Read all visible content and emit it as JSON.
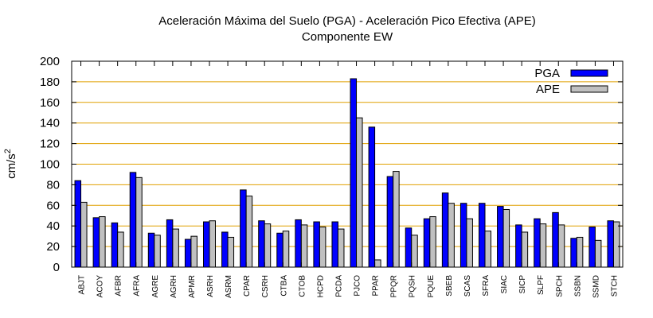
{
  "chart_data": {
    "type": "bar",
    "title": "Aceleración Máxima del Suelo (PGA) -  Aceleración Pico Efectiva (APE)",
    "subtitle": "Componente EW",
    "xlabel": "",
    "ylabel": "cm/s",
    "ylabel_superscript": "2",
    "ylim": [
      0,
      200
    ],
    "yticks": [
      0,
      20,
      40,
      60,
      80,
      100,
      120,
      140,
      160,
      180,
      200
    ],
    "ytick_labels": [
      "0",
      "20",
      "40",
      "60",
      "80",
      "100",
      "120",
      "140",
      "160",
      "180",
      "200"
    ],
    "grid": true,
    "legend": "top-right",
    "categories": [
      "ABJT",
      "ACOY",
      "AFBR",
      "AFRA",
      "AGRE",
      "AGRH",
      "APMR",
      "ASRH",
      "ASRM",
      "CPAR",
      "CSRH",
      "CTBA",
      "CTOB",
      "HCPD",
      "PCDA",
      "PJCO",
      "PPAR",
      "PPQR",
      "PQSH",
      "PQUE",
      "SBEB",
      "SCAS",
      "SFRA",
      "SIAC",
      "SICP",
      "SLPF",
      "SPCH",
      "SSBN",
      "SSMD",
      "STCH"
    ],
    "series": [
      {
        "name": "PGA",
        "color": "#0000ff",
        "values": [
          84,
          48,
          43,
          92,
          33,
          46,
          27,
          44,
          34,
          75,
          45,
          33,
          46,
          44,
          44,
          183,
          136,
          88,
          38,
          47,
          72,
          62,
          62,
          59,
          41,
          47,
          53,
          28,
          39,
          45
        ]
      },
      {
        "name": "APE",
        "color": "#c0c0c0",
        "values": [
          63,
          49,
          34,
          87,
          31,
          37,
          30,
          45,
          29,
          69,
          42,
          35,
          41,
          39,
          37,
          145,
          7,
          93,
          31,
          49,
          62,
          47,
          35,
          56,
          34,
          42,
          41,
          29,
          26,
          44
        ]
      }
    ],
    "grid_color": "#e0a000",
    "frame_color": "#000000"
  }
}
